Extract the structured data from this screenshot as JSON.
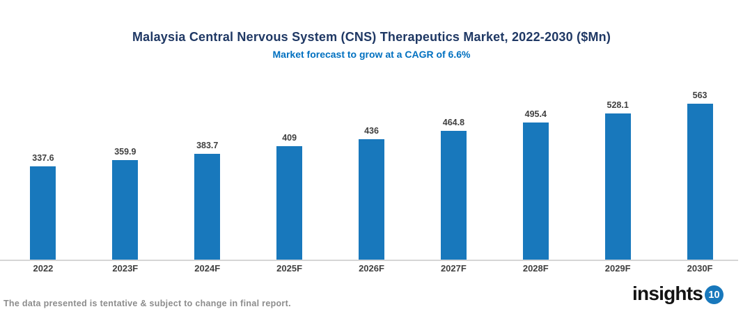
{
  "header": {
    "title": "Malaysia Central Nervous System (CNS) Therapeutics Market, 2022-2030 ($Mn)",
    "subtitle": "Market forecast to grow at a CAGR of 6.6%"
  },
  "chart_data": {
    "type": "bar",
    "title": "Malaysia Central Nervous System (CNS) Therapeutics Market, 2022-2030 ($Mn)",
    "subtitle": "Market forecast to grow at a CAGR of 6.6%",
    "categories": [
      "2022",
      "2023F",
      "2024F",
      "2025F",
      "2026F",
      "2027F",
      "2028F",
      "2029F",
      "2030F"
    ],
    "values": [
      337.6,
      359.9,
      383.7,
      409,
      436,
      464.8,
      495.4,
      528.1,
      563
    ],
    "value_labels": [
      "337.6",
      "359.9",
      "383.7",
      "409",
      "436",
      "464.8",
      "495.4",
      "528.1",
      "563"
    ],
    "xlabel": "",
    "ylabel": "",
    "ylim": [
      0,
      600
    ],
    "grid": false,
    "legend": "none",
    "bar_color": "#1878BC",
    "label_color": "#404040",
    "title_color": "#1F3864",
    "subtitle_color": "#0070C0",
    "axis_line_color": "#D6D6D6"
  },
  "footer": {
    "note": "The data presented is tentative & subject to change in final report.",
    "note_color": "#8C8C8C",
    "logo_text": "insights",
    "logo_number": "10",
    "logo_circle_color": "#1878BC"
  }
}
